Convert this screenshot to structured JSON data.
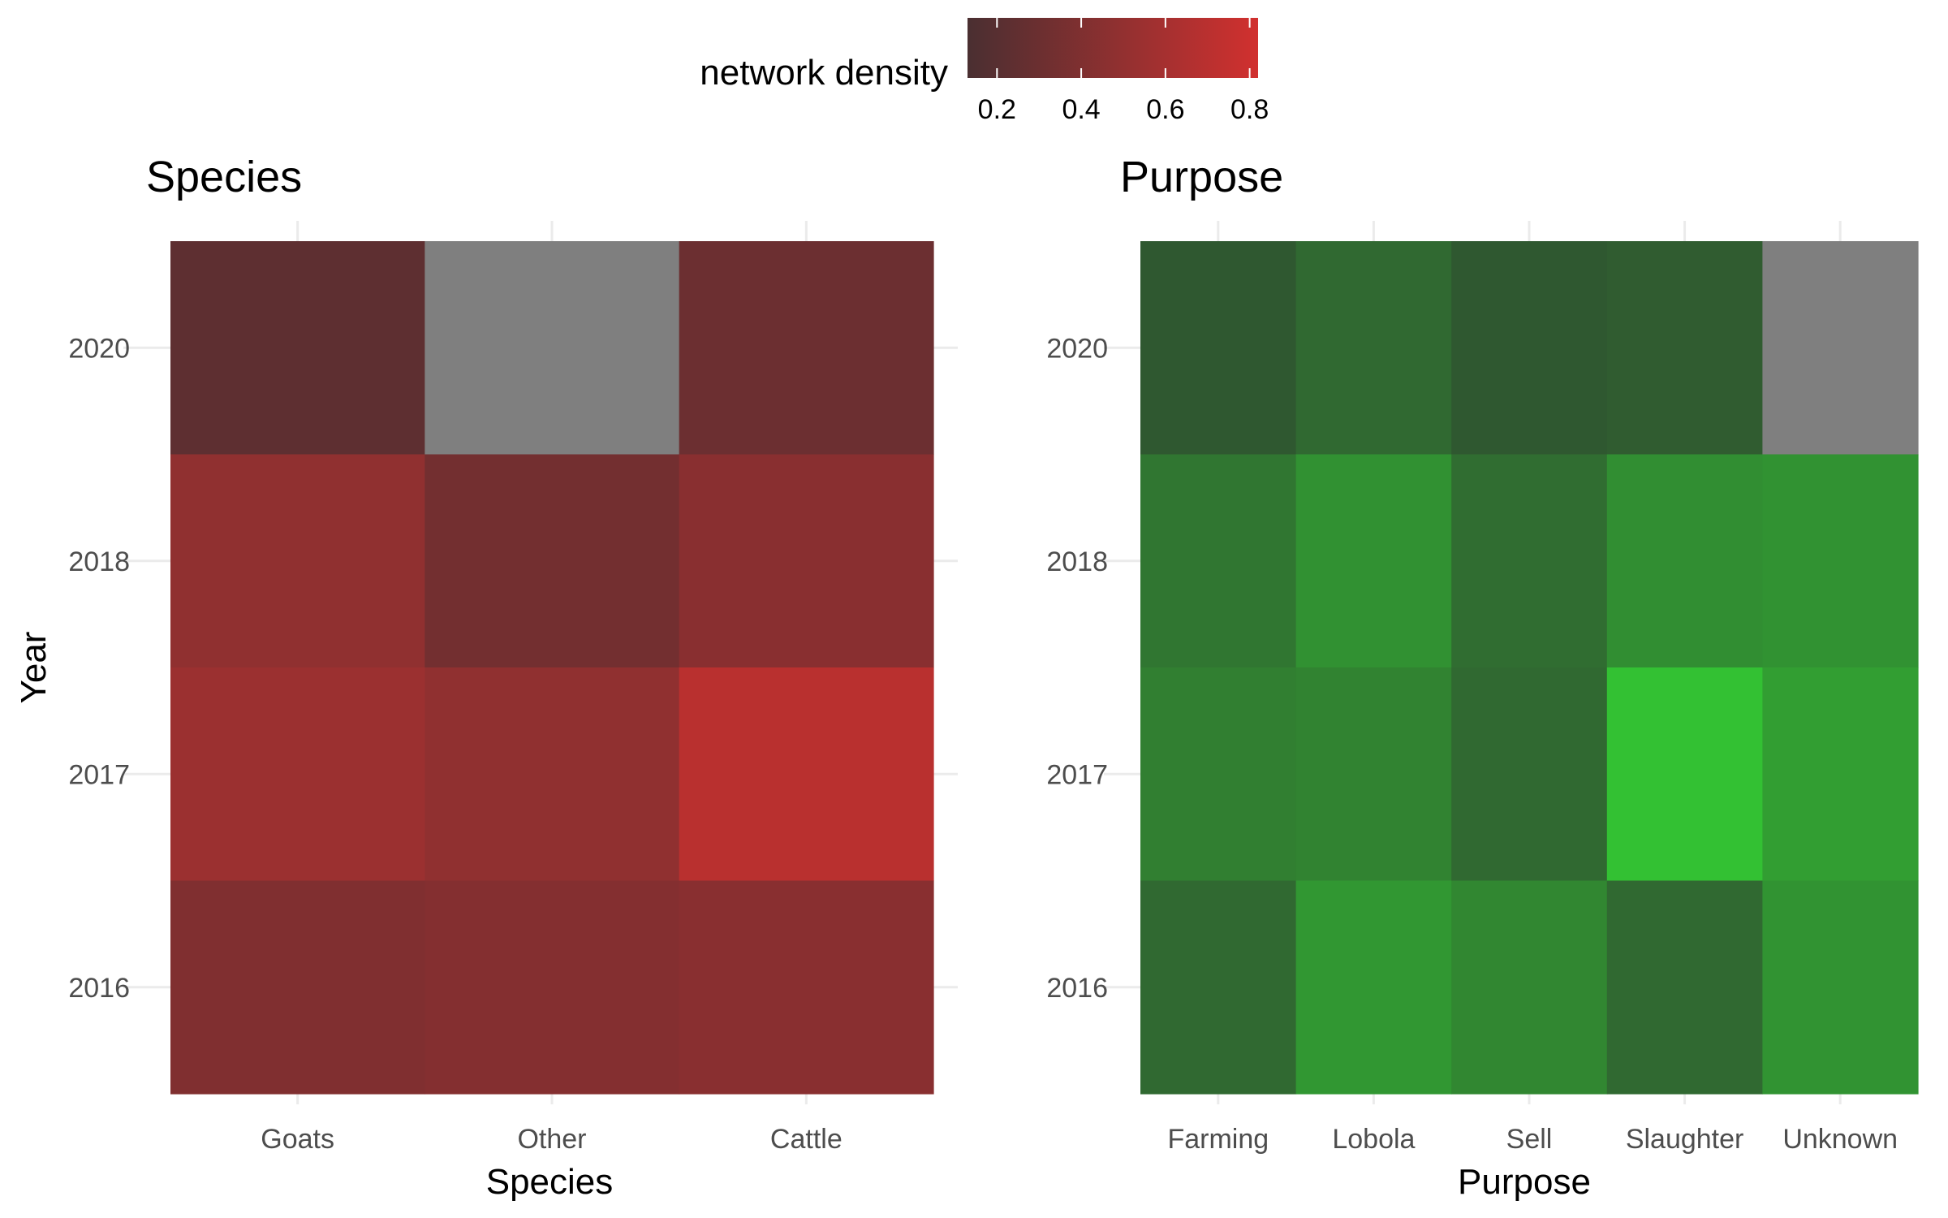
{
  "legend": {
    "title": "network density",
    "min": 0.13,
    "max": 0.82,
    "ticks": [
      0.2,
      0.4,
      0.6,
      0.8
    ],
    "tick_labels": [
      "0.2",
      "0.4",
      "0.6",
      "0.8"
    ],
    "color_low": "#4a2f31",
    "color_high": "#d1302f"
  },
  "chart_data": [
    {
      "type": "heatmap",
      "title": "Species",
      "xlabel": "Species",
      "ylabel": "Year",
      "categories": [
        "Goats",
        "Other",
        "Cattle"
      ],
      "years": [
        "2020",
        "2018",
        "2017",
        "2016"
      ],
      "values": [
        [
          0.15,
          null,
          0.25
        ],
        [
          0.52,
          0.3,
          0.47
        ],
        [
          0.6,
          0.52,
          0.82
        ],
        [
          0.4,
          0.43,
          0.47
        ]
      ],
      "na_color": "#7f7f7f",
      "color_low": "#4a2f31",
      "color_high": "#d1302f"
    },
    {
      "type": "heatmap",
      "title": "Purpose",
      "xlabel": "Purpose",
      "ylabel": "",
      "categories": [
        "Farming",
        "Lobola",
        "Sell",
        "Slaughter",
        "Unknown"
      ],
      "years": [
        "2020",
        "2018",
        "2017",
        "2016"
      ],
      "values": [
        [
          0.12,
          0.25,
          0.12,
          0.15,
          null
        ],
        [
          0.35,
          0.55,
          0.28,
          0.53,
          0.56
        ],
        [
          0.42,
          0.45,
          0.25,
          0.92,
          0.65
        ],
        [
          0.25,
          0.6,
          0.48,
          0.25,
          0.57
        ]
      ],
      "na_color": "#7f7f7f",
      "color_low": "#2f4830",
      "color_high": "#33cc33"
    }
  ]
}
